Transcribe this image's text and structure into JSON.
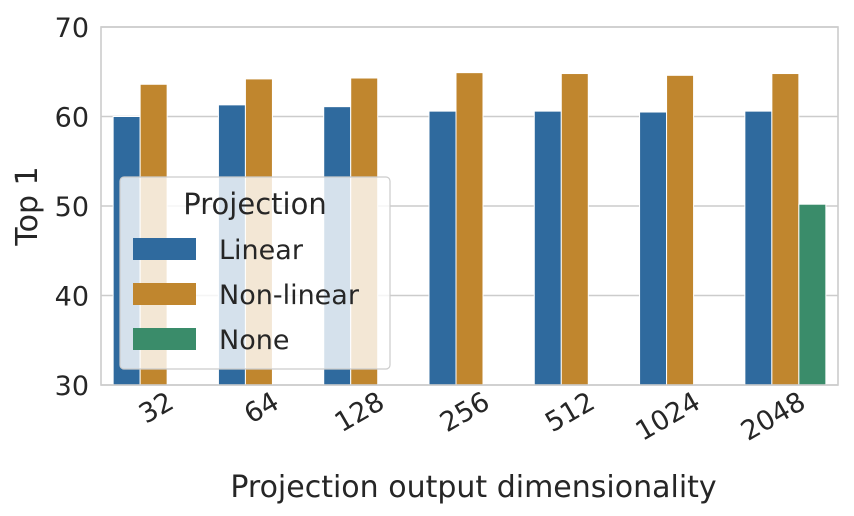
{
  "chart_data": {
    "type": "bar",
    "categories": [
      "32",
      "64",
      "128",
      "256",
      "512",
      "1024",
      "2048"
    ],
    "series": [
      {
        "name": "Linear",
        "color": "#2f6a9e",
        "values": [
          60.0,
          61.3,
          61.1,
          60.6,
          60.6,
          60.5,
          60.6
        ]
      },
      {
        "name": "Non-linear",
        "color": "#c0862e",
        "values": [
          63.6,
          64.2,
          64.3,
          64.9,
          64.8,
          64.6,
          64.8
        ]
      },
      {
        "name": "None",
        "color": "#3a8c6a",
        "values": [
          null,
          null,
          null,
          null,
          null,
          null,
          50.2
        ]
      }
    ],
    "xlabel": "Projection output dimensionality",
    "ylabel": "Top 1",
    "ylim": [
      30,
      70
    ],
    "yticks": [
      30,
      40,
      50,
      60,
      70
    ],
    "grid": "horizontal",
    "legend": {
      "title": "Projection",
      "placement": "center-left"
    }
  }
}
